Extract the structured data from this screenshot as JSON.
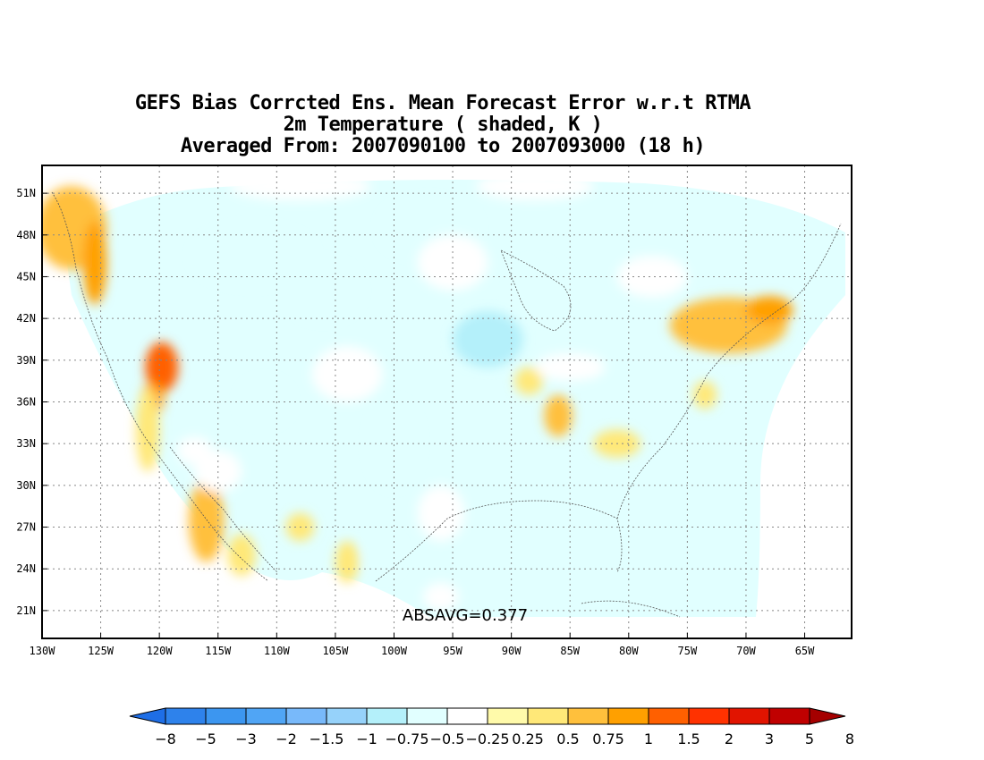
{
  "title": {
    "line1": "GEFS Bias Corrcted Ens. Mean Forecast Error w.r.t RTMA",
    "line2": "2m Temperature ( shaded, K )",
    "line3": "Averaged From: 2007090100 to 2007093000 (18 h)"
  },
  "annotation": "ABSAVG=0.377",
  "map": {
    "lon_range": [
      -130,
      -61
    ],
    "lat_range": [
      19,
      53
    ],
    "lon_ticks": [
      "130W",
      "125W",
      "120W",
      "115W",
      "110W",
      "105W",
      "100W",
      "95W",
      "90W",
      "85W",
      "80W",
      "75W",
      "70W",
      "65W"
    ],
    "lat_ticks": [
      "51N",
      "48N",
      "45N",
      "42N",
      "39N",
      "36N",
      "33N",
      "30N",
      "27N",
      "24N",
      "21N"
    ],
    "grid": true
  },
  "colorbar": {
    "colors": [
      "#1e6ee6",
      "#2e82eb",
      "#3c96f0",
      "#50a5f5",
      "#78b9fa",
      "#96d2fa",
      "#b4f0fa",
      "#e1ffff",
      "#ffffff",
      "#fffaaa",
      "#ffe878",
      "#ffc03c",
      "#ffa000",
      "#ff6000",
      "#ff3200",
      "#e11400",
      "#c00000",
      "#a50000"
    ],
    "labels": [
      "-8",
      "-5",
      "-3",
      "-2",
      "-1.5",
      "-1",
      "-0.75",
      "-0.5",
      "-0.25",
      "0.25",
      "0.5",
      "0.75",
      "1",
      "1.5",
      "2",
      "3",
      "5",
      "8"
    ]
  },
  "field_blobs": [
    {
      "lon": -127.5,
      "lat": 48.5,
      "rx": 3,
      "ry": 3,
      "value": 0.5
    },
    {
      "lon": -125.5,
      "lat": 46,
      "rx": 1,
      "ry": 3,
      "value": 0.75
    },
    {
      "lon": -119.8,
      "lat": 38.5,
      "rx": 1.4,
      "ry": 1.8,
      "value": 1.0
    },
    {
      "lon": -120.6,
      "lat": 36.2,
      "rx": 1,
      "ry": 1.2,
      "value": 0.75
    },
    {
      "lon": -121,
      "lat": 34,
      "rx": 1,
      "ry": 3,
      "value": 0.25
    },
    {
      "lon": -116,
      "lat": 27.5,
      "rx": 1.5,
      "ry": 3,
      "value": 0.5
    },
    {
      "lon": -113,
      "lat": 25,
      "rx": 1.2,
      "ry": 1.5,
      "value": 0.25
    },
    {
      "lon": -71.5,
      "lat": 41.5,
      "rx": 5,
      "ry": 2,
      "value": 0.5
    },
    {
      "lon": -68,
      "lat": 42.6,
      "rx": 2,
      "ry": 1,
      "value": 0.75
    },
    {
      "lon": -88.5,
      "lat": 37.5,
      "rx": 1.2,
      "ry": 1,
      "value": 0.25
    },
    {
      "lon": -86,
      "lat": 35,
      "rx": 1.2,
      "ry": 1.5,
      "value": 0.5
    },
    {
      "lon": -81,
      "lat": 33,
      "rx": 2,
      "ry": 1,
      "value": 0.25
    },
    {
      "lon": -73.5,
      "lat": 36.5,
      "rx": 1,
      "ry": 1,
      "value": 0.25
    },
    {
      "lon": -104,
      "lat": 24.5,
      "rx": 1,
      "ry": 1.5,
      "value": 0.25
    },
    {
      "lon": -108,
      "lat": 27,
      "rx": 1.2,
      "ry": 1,
      "value": 0.25
    },
    {
      "lon": -117,
      "lat": 32.5,
      "rx": 1.5,
      "ry": 1,
      "value": -0.5
    },
    {
      "lon": -112,
      "lat": 46.5,
      "rx": 5,
      "ry": 2,
      "value": -0.75
    },
    {
      "lon": -106,
      "lat": 44,
      "rx": 3,
      "ry": 2,
      "value": -0.75
    },
    {
      "lon": -97,
      "lat": 48.5,
      "rx": 4,
      "ry": 2,
      "value": -0.75
    },
    {
      "lon": -92,
      "lat": 40.5,
      "rx": 3,
      "ry": 2,
      "value": -1.0
    },
    {
      "lon": -88,
      "lat": 44,
      "rx": 2,
      "ry": 2,
      "value": -0.75
    },
    {
      "lon": -100,
      "lat": 33,
      "rx": 2,
      "ry": 3,
      "value": -0.75
    },
    {
      "lon": -111,
      "lat": 36,
      "rx": 2,
      "ry": 1.5,
      "value": -0.75
    },
    {
      "lon": -115,
      "lat": 31,
      "rx": 2,
      "ry": 1.5,
      "value": -0.5
    },
    {
      "lon": -101,
      "lat": 25,
      "rx": 1.5,
      "ry": 1.5,
      "value": -0.75
    },
    {
      "lon": -95,
      "lat": 46,
      "rx": 3,
      "ry": 2,
      "value": -0.5
    },
    {
      "lon": -104,
      "lat": 38,
      "rx": 3,
      "ry": 2,
      "value": -0.5
    },
    {
      "lon": -85,
      "lat": 38.5,
      "rx": 3,
      "ry": 1,
      "value": -0.5
    },
    {
      "lon": -78,
      "lat": 45,
      "rx": 3,
      "ry": 1.5,
      "value": -0.5
    },
    {
      "lon": -96,
      "lat": 28,
      "rx": 2,
      "ry": 2,
      "value": -0.5
    },
    {
      "lon": -108,
      "lat": 51.5,
      "rx": 6,
      "ry": 1,
      "value": -0.5
    },
    {
      "lon": -88,
      "lat": 51.5,
      "rx": 5,
      "ry": 1,
      "value": -0.5
    },
    {
      "lon": -96,
      "lat": 22,
      "rx": 1.5,
      "ry": 1,
      "value": -0.5
    }
  ]
}
